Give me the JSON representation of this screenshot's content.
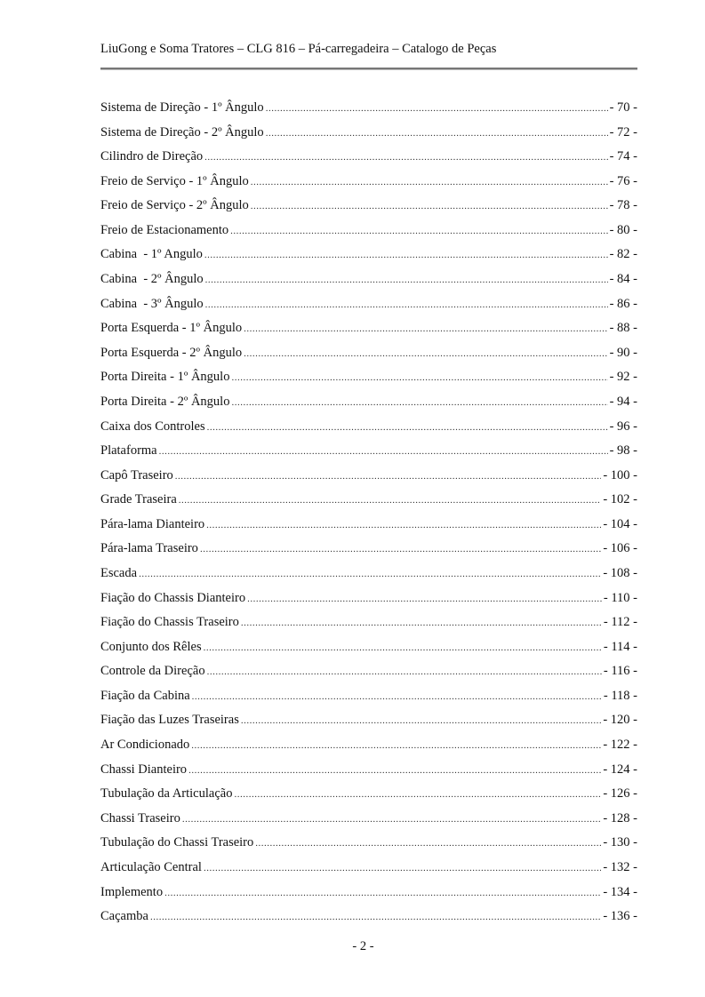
{
  "header": {
    "title": "LiuGong e Soma Tratores – CLG 816 – Pá-carregadeira – Catalogo de Peças"
  },
  "toc": [
    {
      "label": "Sistema de Direção - 1º Ângulo",
      "page": "- 70 -"
    },
    {
      "label": "Sistema de Direção - 2º Ângulo",
      "page": "- 72 -"
    },
    {
      "label": "Cilindro de Direção",
      "page": "- 74 -"
    },
    {
      "label": "Freio de Serviço - 1º Ângulo",
      "page": "- 76 -"
    },
    {
      "label": "Freio de Serviço - 2º Ângulo",
      "page": "- 78 -"
    },
    {
      "label": "Freio de Estacionamento",
      "page": "- 80 -"
    },
    {
      "label": "Cabina  - 1º Angulo",
      "page": "- 82 -"
    },
    {
      "label": "Cabina  - 2º Ângulo",
      "page": "- 84 -"
    },
    {
      "label": "Cabina  - 3º Ângulo",
      "page": "- 86 -"
    },
    {
      "label": "Porta Esquerda - 1º Ângulo",
      "page": "- 88 -"
    },
    {
      "label": "Porta Esquerda - 2º Ângulo",
      "page": "- 90 -"
    },
    {
      "label": "Porta Direita - 1º Ângulo",
      "page": "- 92 -"
    },
    {
      "label": "Porta Direita - 2º Ângulo",
      "page": "- 94 -"
    },
    {
      "label": "Caixa dos Controles",
      "page": "- 96 -"
    },
    {
      "label": "Plataforma",
      "page": "- 98 -"
    },
    {
      "label": "Capô Traseiro",
      "page": "- 100 -"
    },
    {
      "label": "Grade Traseira",
      "page": "- 102 -"
    },
    {
      "label": "Pára-lama Dianteiro",
      "page": "- 104 -"
    },
    {
      "label": "Pára-lama Traseiro",
      "page": "- 106 -"
    },
    {
      "label": "Escada",
      "page": "- 108 -"
    },
    {
      "label": "Fiação do Chassis Dianteiro",
      "page": "- 110 -"
    },
    {
      "label": "Fiação do Chassis Traseiro",
      "page": "- 112 -"
    },
    {
      "label": "Conjunto dos Rêles",
      "page": "- 114 -"
    },
    {
      "label": "Controle da Direção",
      "page": "- 116 -"
    },
    {
      "label": "Fiação da Cabina",
      "page": "- 118 -"
    },
    {
      "label": "Fiação das Luzes Traseiras",
      "page": "- 120 -"
    },
    {
      "label": "Ar Condicionado",
      "page": "- 122 -"
    },
    {
      "label": "Chassi Dianteiro",
      "page": "- 124 -"
    },
    {
      "label": "Tubulação da Articulação",
      "page": "- 126 -"
    },
    {
      "label": "Chassi Traseiro",
      "page": "- 128 -"
    },
    {
      "label": "Tubulação do Chassi Traseiro",
      "page": "- 130 -"
    },
    {
      "label": "Articulação Central",
      "page": "- 132 -"
    },
    {
      "label": "Implemento",
      "page": "- 134 -"
    },
    {
      "label": "Caçamba",
      "page": "- 136 -"
    }
  ],
  "footer": {
    "page_number": "- 2 -"
  }
}
